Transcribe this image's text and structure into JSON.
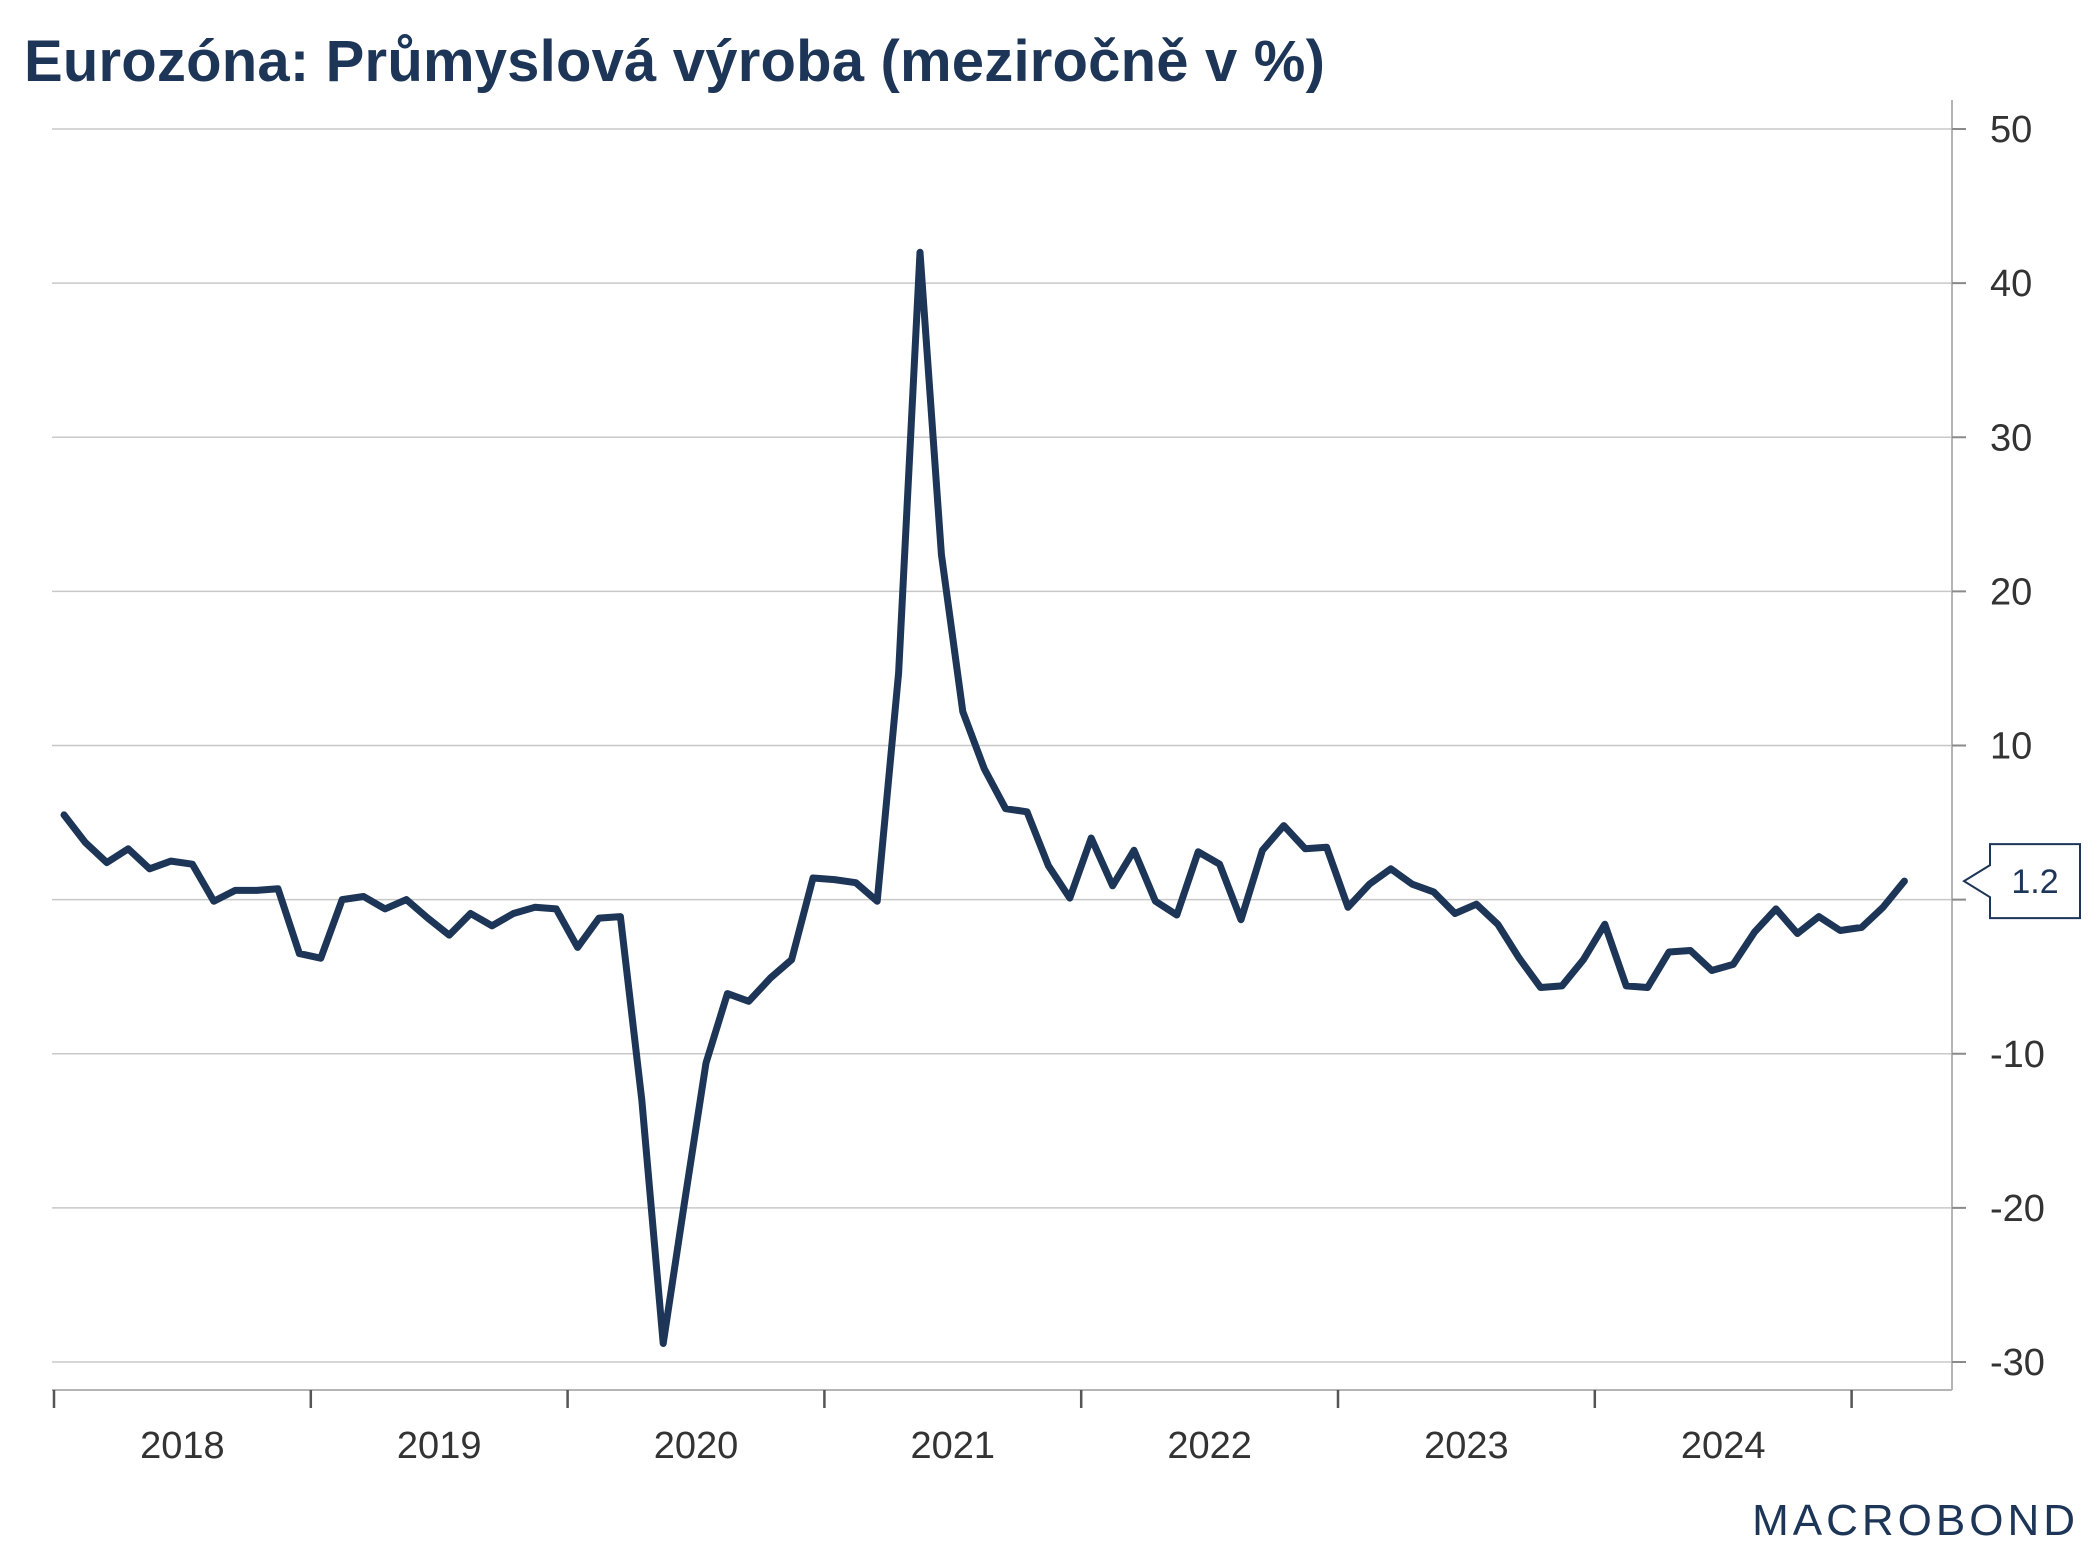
{
  "chart_data": {
    "type": "line",
    "title": "Eurozóna: Průmyslová výroba (meziročně v %)",
    "xlabel": "",
    "ylabel": "",
    "ylim": [
      -30,
      50
    ],
    "y_ticks": [
      50,
      40,
      30,
      20,
      10,
      0,
      -10,
      -20,
      -30
    ],
    "y_tick_labels": [
      "50",
      "40",
      "30",
      "20",
      "10",
      "",
      "-10",
      "-20",
      "-30"
    ],
    "y_axis_side": "right",
    "grid": true,
    "x_categories": [
      "2018",
      "2019",
      "2020",
      "2021",
      "2022",
      "2023",
      "2024"
    ],
    "series": [
      {
        "color": "#1d3557",
        "start": "2018-01",
        "frequency": "monthly",
        "values": [
          5.5,
          3.7,
          2.4,
          3.3,
          2.0,
          2.5,
          2.3,
          -0.1,
          0.6,
          0.6,
          0.7,
          -3.5,
          -3.8,
          0.0,
          0.2,
          -0.6,
          0.0,
          -1.2,
          -2.3,
          -0.9,
          -1.7,
          -0.9,
          -0.5,
          -0.6,
          -3.1,
          -1.2,
          -1.1,
          -13.0,
          -28.8,
          -19.6,
          -10.6,
          -6.1,
          -6.6,
          -5.1,
          -3.9,
          1.4,
          1.3,
          1.1,
          -0.1,
          14.7,
          42.0,
          22.4,
          12.2,
          8.5,
          5.9,
          5.7,
          2.2,
          0.1,
          4.0,
          0.9,
          3.2,
          -0.1,
          -1.0,
          3.1,
          2.3,
          -1.3,
          3.2,
          4.8,
          3.3,
          3.4,
          -0.5,
          1.0,
          2.0,
          1.0,
          0.5,
          -0.9,
          -0.3,
          -1.6,
          -3.8,
          -5.7,
          -5.6,
          -3.9,
          -1.6,
          -5.6,
          -5.7,
          -3.4,
          -3.3,
          -4.6,
          -4.2,
          -2.1,
          -0.6,
          -2.2,
          -1.1,
          -2.0,
          -1.8,
          -0.5,
          1.2
        ]
      }
    ],
    "last_value_label": "1.2"
  },
  "branding": {
    "logo_text": "MACROBOND"
  }
}
